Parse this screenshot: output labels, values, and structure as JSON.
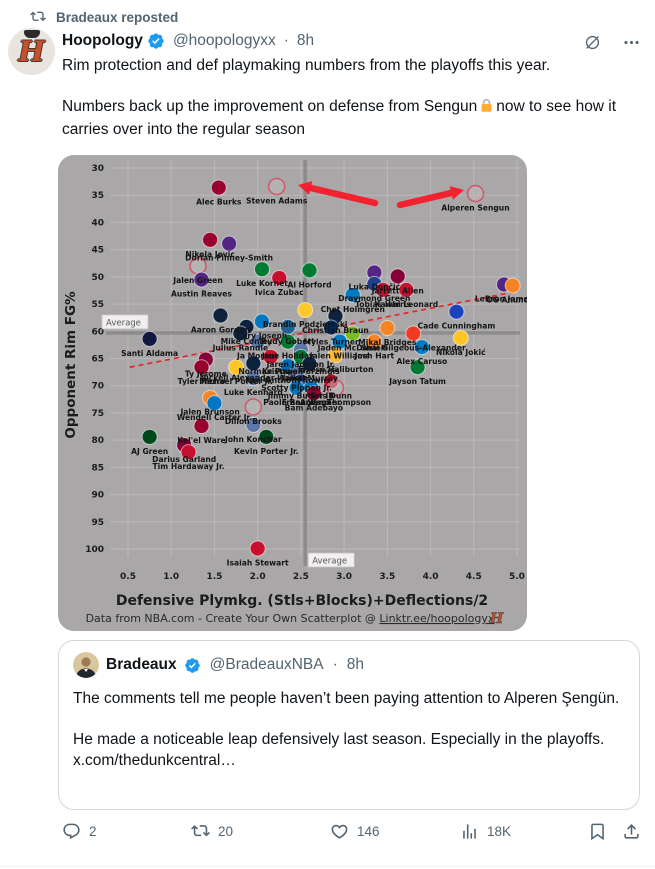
{
  "repost_banner": {
    "text": "Bradeaux reposted"
  },
  "tweet": {
    "author": "Hoopology",
    "handle": "@hoopologyxx",
    "separator": "·",
    "time": "8h",
    "avatar_letter": "H",
    "line1": "Rim protection and def playmaking numbers from the playoffs this year.",
    "line2_before": "Numbers back up the improvement on defense from Sengun",
    "line2_after": "now to see how it carries over into the regular season"
  },
  "quote": {
    "author": "Bradeaux",
    "handle": "@BradeauxNBA",
    "separator": "·",
    "time": "8h",
    "text1": "The comments tell me people haven’t been paying attention to Alperen Şengün.",
    "text2": "He made a noticeable leap defensively last season. Especially in the playoffs. x.com/thedunkcentral…"
  },
  "actions": {
    "replies": "2",
    "reposts": "20",
    "likes": "146",
    "views": "18K"
  },
  "colors": {
    "accent": "#1d9bf0",
    "muted": "#536471",
    "arrow_red": "#f4212e",
    "chart_bg": "#a9a7a7",
    "grid": "#bab8b8",
    "avg_line": "#8d8b8b",
    "trend_red": "#e8232a",
    "logo_orange": "#c8502a"
  },
  "chart_data": {
    "type": "scatter",
    "xlabel": "Defensive Plymkg. (Stls+Blocks)+Deflections/2",
    "ylabel": "Opponent Rim FG%",
    "footer_prefix": "Data from NBA.com - Create Your Own Scatterplot @ ",
    "footer_link": "Linktr.ee/hoopologyx",
    "footer_logo": "H",
    "x_ticks": [
      0.5,
      1.0,
      1.5,
      2.0,
      2.5,
      3.0,
      3.5,
      4.0,
      4.5,
      5.0
    ],
    "y_ticks": [
      30,
      35,
      40,
      45,
      50,
      55,
      60,
      65,
      70,
      75,
      80,
      85,
      90,
      95,
      100
    ],
    "y_inverted": true,
    "xlim": [
      0.3,
      5.15
    ],
    "ylim": [
      28,
      103
    ],
    "x_average": 2.55,
    "y_average": 60.3,
    "average_label": "Average",
    "trendline": {
      "x1": 0.52,
      "y1": 66.6,
      "x2": 5.02,
      "y2": 52.6
    },
    "arrow_targets": [
      "Steven Adams",
      "Alperen Sengun"
    ],
    "points": [
      {
        "name": "Alec Burks",
        "x": 1.55,
        "y": 33.6,
        "c": "#98002E"
      },
      {
        "name": "Steven Adams",
        "x": 2.22,
        "y": 33.4,
        "c": "#CE1141",
        "o": true
      },
      {
        "name": "Alperen Sengun",
        "x": 4.52,
        "y": 34.7,
        "c": "#CE1141",
        "o": true
      },
      {
        "name": "Nikola Jovic",
        "x": 1.45,
        "y": 43.2,
        "c": "#98002E"
      },
      {
        "name": "Dorian Finney-Smith",
        "x": 1.67,
        "y": 43.9,
        "c": "#552583"
      },
      {
        "name": "Jalen Green",
        "x": 1.31,
        "y": 48.0,
        "c": "#CE1141",
        "o": true
      },
      {
        "name": "Austin Reaves",
        "x": 1.35,
        "y": 50.5,
        "c": "#552583"
      },
      {
        "name": "Luke Kornet",
        "x": 2.05,
        "y": 48.6,
        "c": "#007A33"
      },
      {
        "name": "Ivica Zubac",
        "x": 2.25,
        "y": 50.2,
        "c": "#C8102E"
      },
      {
        "name": "Al Horford",
        "x": 2.6,
        "y": 48.8,
        "c": "#007A33"
      },
      {
        "name": "Luka Dončić",
        "x": 3.35,
        "y": 49.2,
        "c": "#552583"
      },
      {
        "name": "Jarrett Allen",
        "x": 3.62,
        "y": 49.9,
        "c": "#860038"
      },
      {
        "name": "Draymond Green",
        "x": 3.35,
        "y": 51.3,
        "c": "#1D428A"
      },
      {
        "name": "Tobias Harris",
        "x": 3.45,
        "y": 52.4,
        "c": "#C8102E"
      },
      {
        "name": "Kawhi Leonard",
        "x": 3.72,
        "y": 52.4,
        "c": "#C8102E"
      },
      {
        "name": "Chet Holmgren",
        "x": 3.1,
        "y": 53.3,
        "c": "#007AC1"
      },
      {
        "name": "LeBron James",
        "x": 4.85,
        "y": 51.4,
        "c": "#552583"
      },
      {
        "name": "OG Anunoby",
        "x": 4.95,
        "y": 51.6,
        "c": "#F58426"
      },
      {
        "name": "Cade Cunningham",
        "x": 4.3,
        "y": 56.4,
        "c": "#1D42BA"
      },
      {
        "name": "Aaron Gordon",
        "x": 1.57,
        "y": 57.1,
        "c": "#0E2240"
      },
      {
        "name": "Cory Joseph",
        "x": 2.05,
        "y": 58.2,
        "c": "#0077C0"
      },
      {
        "name": "Mike Conley",
        "x": 1.87,
        "y": 59.2,
        "c": "#0C2340"
      },
      {
        "name": "Rudy Gobert",
        "x": 2.35,
        "y": 59.2,
        "c": "#236192"
      },
      {
        "name": "Julius Randle",
        "x": 1.8,
        "y": 60.4,
        "c": "#0C2340"
      },
      {
        "name": "Brandin Podziemski",
        "x": 2.55,
        "y": 56.1,
        "c": "#FFC72C"
      },
      {
        "name": "Christian Braun",
        "x": 2.9,
        "y": 57.2,
        "c": "#0E2240"
      },
      {
        "name": "Myles Turner",
        "x": 2.85,
        "y": 59.3,
        "c": "#002D62"
      },
      {
        "name": "Mikal Bridges",
        "x": 3.5,
        "y": 59.4,
        "c": "#F58426"
      },
      {
        "name": "Shai Gilgeous-Alexander",
        "x": 3.8,
        "y": 60.4,
        "c": "#EF3B24"
      },
      {
        "name": "Nikola Jokić",
        "x": 4.35,
        "y": 61.2,
        "c": "#FEC524"
      },
      {
        "name": "Santi Aldama",
        "x": 0.75,
        "y": 61.4,
        "c": "#12173F"
      },
      {
        "name": "Ja Morant",
        "x": 2.0,
        "y": 61.9,
        "c": "#5D76A9"
      },
      {
        "name": "Jrue Holiday",
        "x": 2.35,
        "y": 61.9,
        "c": "#007A33"
      },
      {
        "name": "Jaden McDaniels",
        "x": 3.1,
        "y": 60.4,
        "c": "#78BE20"
      },
      {
        "name": "Josh Hart",
        "x": 3.35,
        "y": 61.9,
        "c": "#F58426"
      },
      {
        "name": "Jalen Williams",
        "x": 2.95,
        "y": 61.9,
        "c": "#007AC1"
      },
      {
        "name": "Alex Caruso",
        "x": 3.9,
        "y": 62.9,
        "c": "#007AC1"
      },
      {
        "name": "Jaren Jackson Jr.",
        "x": 2.5,
        "y": 63.4,
        "c": "#5D76A9"
      },
      {
        "name": "Norman Powell",
        "x": 2.15,
        "y": 64.7,
        "c": "#C8102E"
      },
      {
        "name": "Kristaps Porzingis",
        "x": 2.5,
        "y": 64.7,
        "c": "#007A33"
      },
      {
        "name": "Tyrese Haliburton",
        "x": 2.9,
        "y": 64.4,
        "c": "#FDBB30"
      },
      {
        "name": "Ty Jerome",
        "x": 1.4,
        "y": 65.2,
        "c": "#860038"
      },
      {
        "name": "Nickeil Alexander-Walker",
        "x": 1.95,
        "y": 65.9,
        "c": "#0C2340"
      },
      {
        "name": "Tyler Herro",
        "x": 1.35,
        "y": 66.6,
        "c": "#98002E"
      },
      {
        "name": "Michael Porter Jr.",
        "x": 1.75,
        "y": 66.6,
        "c": "#FEC524"
      },
      {
        "name": "Karl-Anthony Towns",
        "x": 2.35,
        "y": 66.4,
        "c": "#006BB6"
      },
      {
        "name": "Jamal Murray",
        "x": 2.6,
        "y": 66.0,
        "c": "#0E2240"
      },
      {
        "name": "Jayson Tatum",
        "x": 3.85,
        "y": 66.6,
        "c": "#007A33"
      },
      {
        "name": "Luke Kennard",
        "x": 1.95,
        "y": 68.6,
        "c": "#5D76A9"
      },
      {
        "name": "Scotty Pippen Jr.",
        "x": 2.45,
        "y": 67.8,
        "c": "#5D76A9"
      },
      {
        "name": "Jimmy Butler III",
        "x": 2.5,
        "y": 69.2,
        "c": "#1D428A"
      },
      {
        "name": "Kris Dunn",
        "x": 2.85,
        "y": 69.2,
        "c": "#C8102E"
      },
      {
        "name": "Paolo Banchero",
        "x": 2.45,
        "y": 70.4,
        "c": "#0077C0"
      },
      {
        "name": "Franz Wagner",
        "x": 2.62,
        "y": 70.4,
        "c": "#0077C0"
      },
      {
        "name": "Amen Thompson",
        "x": 2.9,
        "y": 70.4,
        "c": "#CE1141",
        "o": true
      },
      {
        "name": "Bam Adebayo",
        "x": 2.65,
        "y": 71.4,
        "c": "#98002E"
      },
      {
        "name": "Jalen Brunson",
        "x": 1.45,
        "y": 72.2,
        "c": "#F58426"
      },
      {
        "name": "Wendell Carter Jr.",
        "x": 1.5,
        "y": 73.2,
        "c": "#0077C0"
      },
      {
        "name": "Dillon Brooks",
        "x": 1.95,
        "y": 73.9,
        "c": "#CE1141",
        "o": true
      },
      {
        "name": "John Konchar",
        "x": 1.95,
        "y": 77.2,
        "c": "#5D76A9"
      },
      {
        "name": "Kel'el Ware",
        "x": 1.35,
        "y": 77.4,
        "c": "#98002E"
      },
      {
        "name": "AJ Green",
        "x": 0.75,
        "y": 79.4,
        "c": "#00471B"
      },
      {
        "name": "Kevin Porter Jr.",
        "x": 2.1,
        "y": 79.4,
        "c": "#00471B"
      },
      {
        "name": "Darius Garland",
        "x": 1.15,
        "y": 80.9,
        "c": "#860038"
      },
      {
        "name": "Tim Hardaway Jr.",
        "x": 1.2,
        "y": 82.2,
        "c": "#C8102E"
      },
      {
        "name": "Isaiah Stewart",
        "x": 2.0,
        "y": 99.9,
        "c": "#C8102E"
      }
    ]
  }
}
